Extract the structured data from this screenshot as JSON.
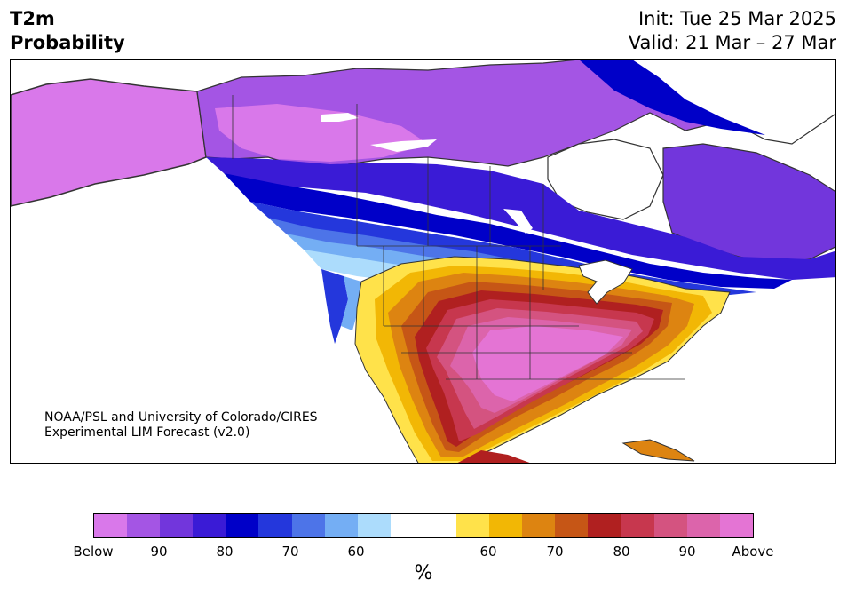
{
  "header": {
    "variable": "T2m",
    "product": "Probability",
    "init": "Init: Tue 25 Mar 2025",
    "valid": "Valid: 21 Mar – 27 Mar"
  },
  "credit": {
    "line1": "NOAA/PSL and University of Colorado/CIRES",
    "line2": "Experimental LIM Forecast (v2.0)"
  },
  "colorbar": {
    "unit": "%",
    "colors": [
      "#d978ea",
      "#a455e4",
      "#7236dc",
      "#3a1bd6",
      "#0000c8",
      "#2437dc",
      "#4d74e8",
      "#74aef4",
      "#acdcfc",
      "#ffffff",
      "#ffffff",
      "#ffe24a",
      "#f2b705",
      "#dd8411",
      "#c65616",
      "#b02020",
      "#c7374e",
      "#d45380",
      "#dc64ab",
      "#e474d4"
    ],
    "tick_labels": [
      "Below",
      "90",
      "80",
      "70",
      "60",
      "60",
      "70",
      "80",
      "90",
      "Above"
    ]
  },
  "legend_meaning": {
    "below": "Below",
    "above": "Above"
  }
}
